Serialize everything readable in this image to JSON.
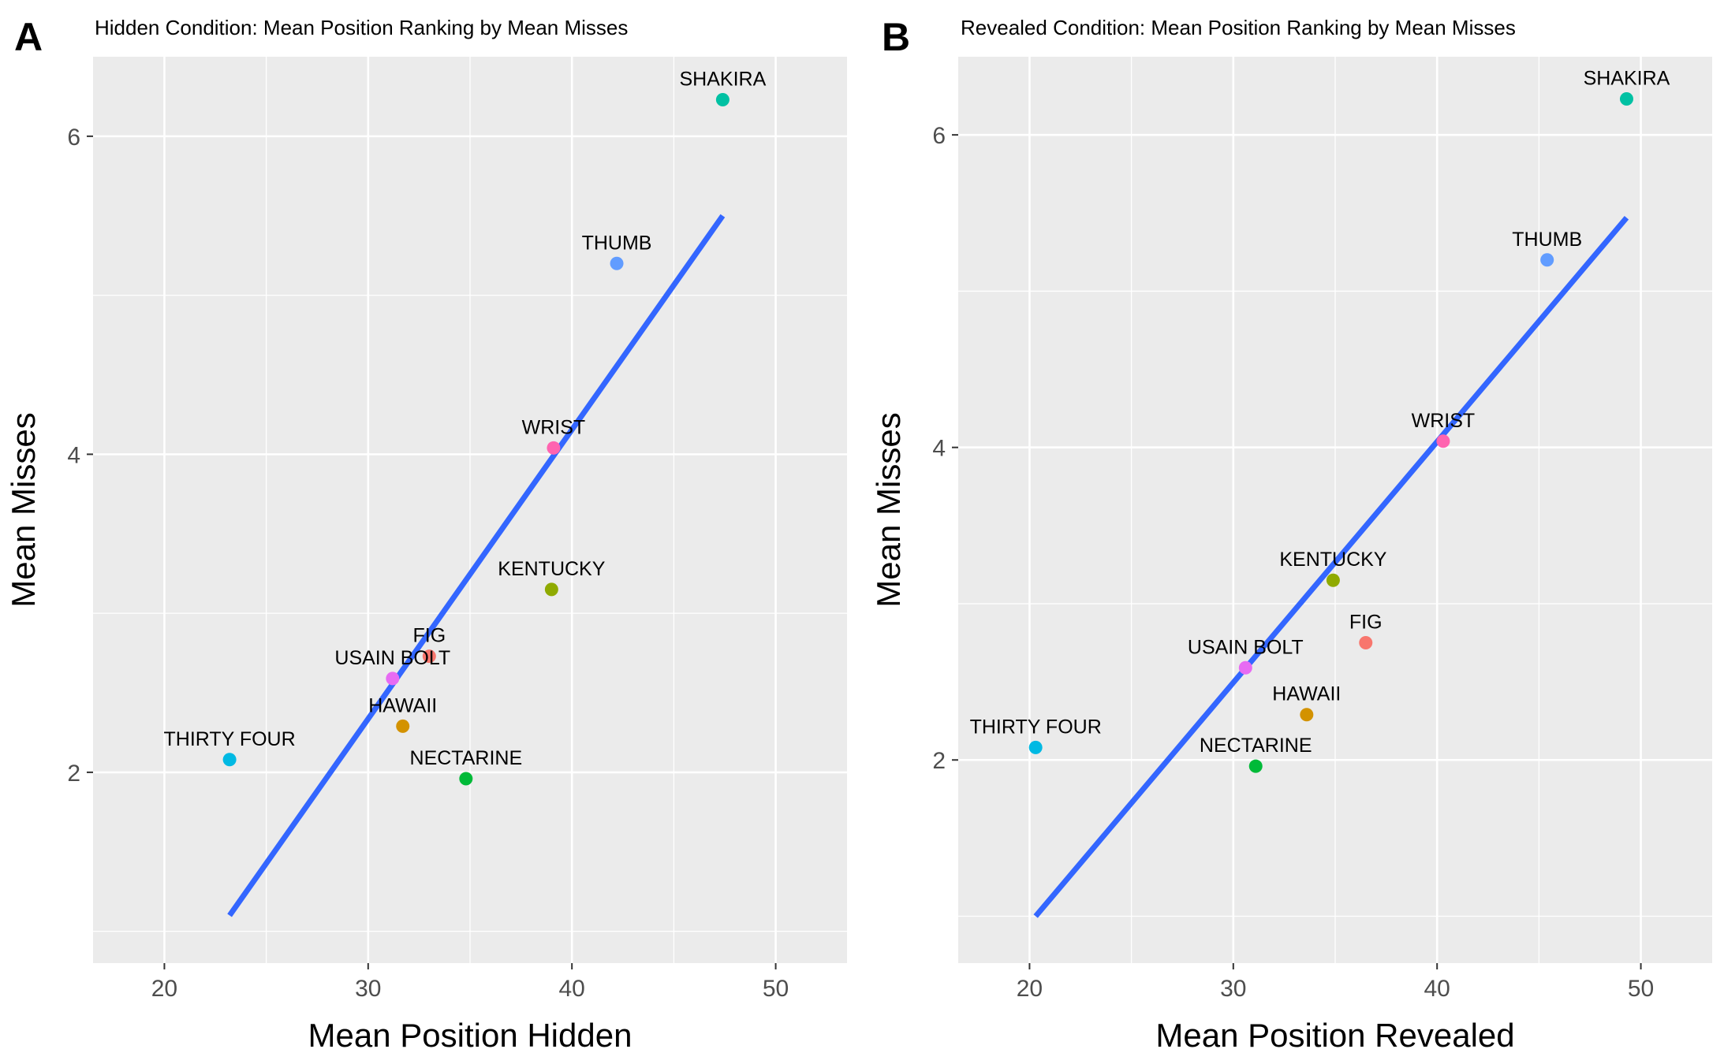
{
  "chart_data": [
    {
      "type": "scatter",
      "panel_label": "A",
      "title": "Hidden Condition: Mean Position Ranking by Mean Misses",
      "xlabel": "Mean Position Hidden",
      "ylabel": "Mean Misses",
      "xlim": [
        16.5,
        53.5
      ],
      "ylim": [
        0.8,
        6.5
      ],
      "x_ticks": [
        20,
        30,
        40,
        50
      ],
      "y_ticks": [
        2,
        4,
        6
      ],
      "grid": true,
      "legend": "none",
      "points": [
        {
          "label": "SHAKIRA",
          "x": 47.4,
          "y": 6.23,
          "color": "#00C1A3"
        },
        {
          "label": "THUMB",
          "x": 42.2,
          "y": 5.2,
          "color": "#619CFF"
        },
        {
          "label": "WRIST",
          "x": 39.1,
          "y": 4.04,
          "color": "#FF64B0"
        },
        {
          "label": "KENTUCKY",
          "x": 39.0,
          "y": 3.15,
          "color": "#8FAA00"
        },
        {
          "label": "FIG",
          "x": 33.0,
          "y": 2.73,
          "color": "#F8766D"
        },
        {
          "label": "USAIN BOLT",
          "x": 31.2,
          "y": 2.59,
          "color": "#E76BF3"
        },
        {
          "label": "HAWAII",
          "x": 31.7,
          "y": 2.29,
          "color": "#D39200"
        },
        {
          "label": "THIRTY FOUR",
          "x": 23.2,
          "y": 2.08,
          "color": "#00B9E3"
        },
        {
          "label": "NECTARINE",
          "x": 34.8,
          "y": 1.96,
          "color": "#00BA38"
        }
      ],
      "fit_line": {
        "x": [
          23.2,
          47.4
        ],
        "y": [
          1.1,
          5.5
        ],
        "color": "#3366FF"
      }
    },
    {
      "type": "scatter",
      "panel_label": "B",
      "title": "Revealed Condition: Mean Position Ranking by Mean Misses",
      "xlabel": "Mean Position Revealed",
      "ylabel": "Mean Misses",
      "xlim": [
        16.5,
        53.5
      ],
      "ylim": [
        0.7,
        6.5
      ],
      "x_ticks": [
        20,
        30,
        40,
        50
      ],
      "y_ticks": [
        2,
        4,
        6
      ],
      "grid": true,
      "legend": "none",
      "points": [
        {
          "label": "SHAKIRA",
          "x": 49.3,
          "y": 6.23,
          "color": "#00C1A3"
        },
        {
          "label": "THUMB",
          "x": 45.4,
          "y": 5.2,
          "color": "#619CFF"
        },
        {
          "label": "WRIST",
          "x": 40.3,
          "y": 4.04,
          "color": "#FF64B0"
        },
        {
          "label": "KENTUCKY",
          "x": 34.9,
          "y": 3.15,
          "color": "#8FAA00"
        },
        {
          "label": "FIG",
          "x": 36.5,
          "y": 2.75,
          "color": "#F8766D"
        },
        {
          "label": "USAIN BOLT",
          "x": 30.6,
          "y": 2.59,
          "color": "#E76BF3"
        },
        {
          "label": "HAWAII",
          "x": 33.6,
          "y": 2.29,
          "color": "#D39200"
        },
        {
          "label": "THIRTY FOUR",
          "x": 20.3,
          "y": 2.08,
          "color": "#00B9E3"
        },
        {
          "label": "NECTARINE",
          "x": 31.1,
          "y": 1.96,
          "color": "#00BA38"
        }
      ],
      "fit_line": {
        "x": [
          20.3,
          49.3
        ],
        "y": [
          1.0,
          5.47
        ],
        "color": "#3366FF"
      }
    }
  ]
}
